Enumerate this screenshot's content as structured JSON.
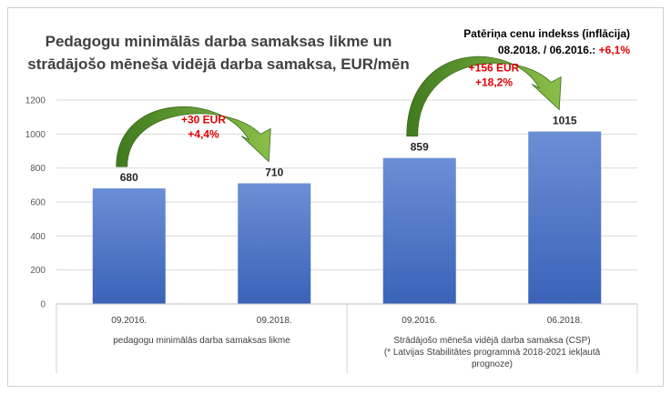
{
  "chart_data": {
    "type": "bar",
    "title_lines": [
      "Pedagogu minimālās darba samaksas likme un",
      "strādājošo mēneša vidējā darba samaksa, EUR/mēn"
    ],
    "categories": [
      "09.2016.",
      "09.2018.",
      "09.2016.",
      "06.2018."
    ],
    "values": [
      680,
      710,
      859,
      1015
    ],
    "value_labels": [
      "680",
      "710",
      "859",
      "1015"
    ],
    "groups": [
      {
        "label_lines": [
          "pedagogu minimālās darba samaksas likme"
        ]
      },
      {
        "label_lines": [
          "Strādājošo mēneša vidējā darba samaksa (CSP)",
          "(* Latvijas Stabilitātes programmā 2018-2021 iekļautā",
          "prognoze)"
        ]
      }
    ],
    "yticks": [
      "0",
      "200",
      "400",
      "600",
      "800",
      "1000",
      "1200"
    ],
    "ylim": [
      0,
      1200
    ],
    "grid": true,
    "bar_color": "#4472c4",
    "annotations": [
      {
        "lines": [
          "+30 EUR",
          "+4,4%"
        ],
        "color": "#e00000",
        "arrow_color": "#5a8a2e"
      },
      {
        "lines": [
          "+156 EUR",
          "+18,2%"
        ],
        "color": "#e00000",
        "arrow_color": "#5a8a2e"
      }
    ],
    "info_box": {
      "line1": "Patēriņa cenu indekss (inflācija)",
      "line2_black": "08.2018. / 06.2016.: ",
      "line2_red": "+6,1%"
    }
  }
}
